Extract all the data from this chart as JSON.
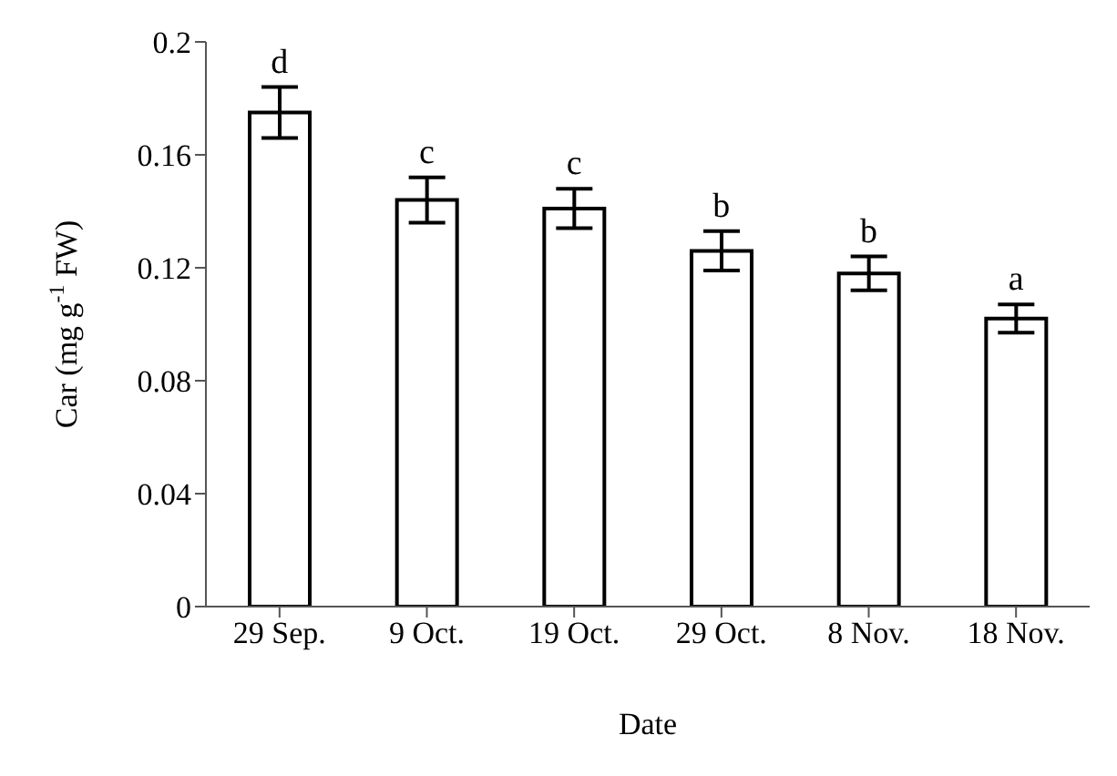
{
  "chart_data": {
    "type": "bar",
    "xlabel": "Date",
    "ylabel": "Car (mg g$^{-1}$ FW)",
    "categories": [
      "29 Sep.",
      "9 Oct.",
      "19 Oct.",
      "29 Oct.",
      "8 Nov.",
      "18 Nov."
    ],
    "values": [
      0.175,
      0.144,
      0.141,
      0.126,
      0.118,
      0.102
    ],
    "errors": [
      0.009,
      0.008,
      0.007,
      0.007,
      0.006,
      0.005
    ],
    "color": "#ffffff",
    "ylim": [
      0,
      0.2
    ],
    "yticks": [
      0,
      0.04,
      0.08,
      0.12,
      0.16,
      0.2
    ],
    "grid": false,
    "legend": false,
    "annotations": [
      {
        "text": "d",
        "x": "29 Sep.",
        "y": 0.184
      },
      {
        "text": "c",
        "x": "9 Oct.",
        "y": 0.152
      },
      {
        "text": "c",
        "x": "19 Oct.",
        "y": 0.148
      },
      {
        "text": "b",
        "x": "29 Oct.",
        "y": 0.133
      },
      {
        "text": "b",
        "x": "8 Nov.",
        "y": 0.124
      },
      {
        "text": "a",
        "x": "18 Nov.",
        "y": 0.107
      }
    ]
  }
}
